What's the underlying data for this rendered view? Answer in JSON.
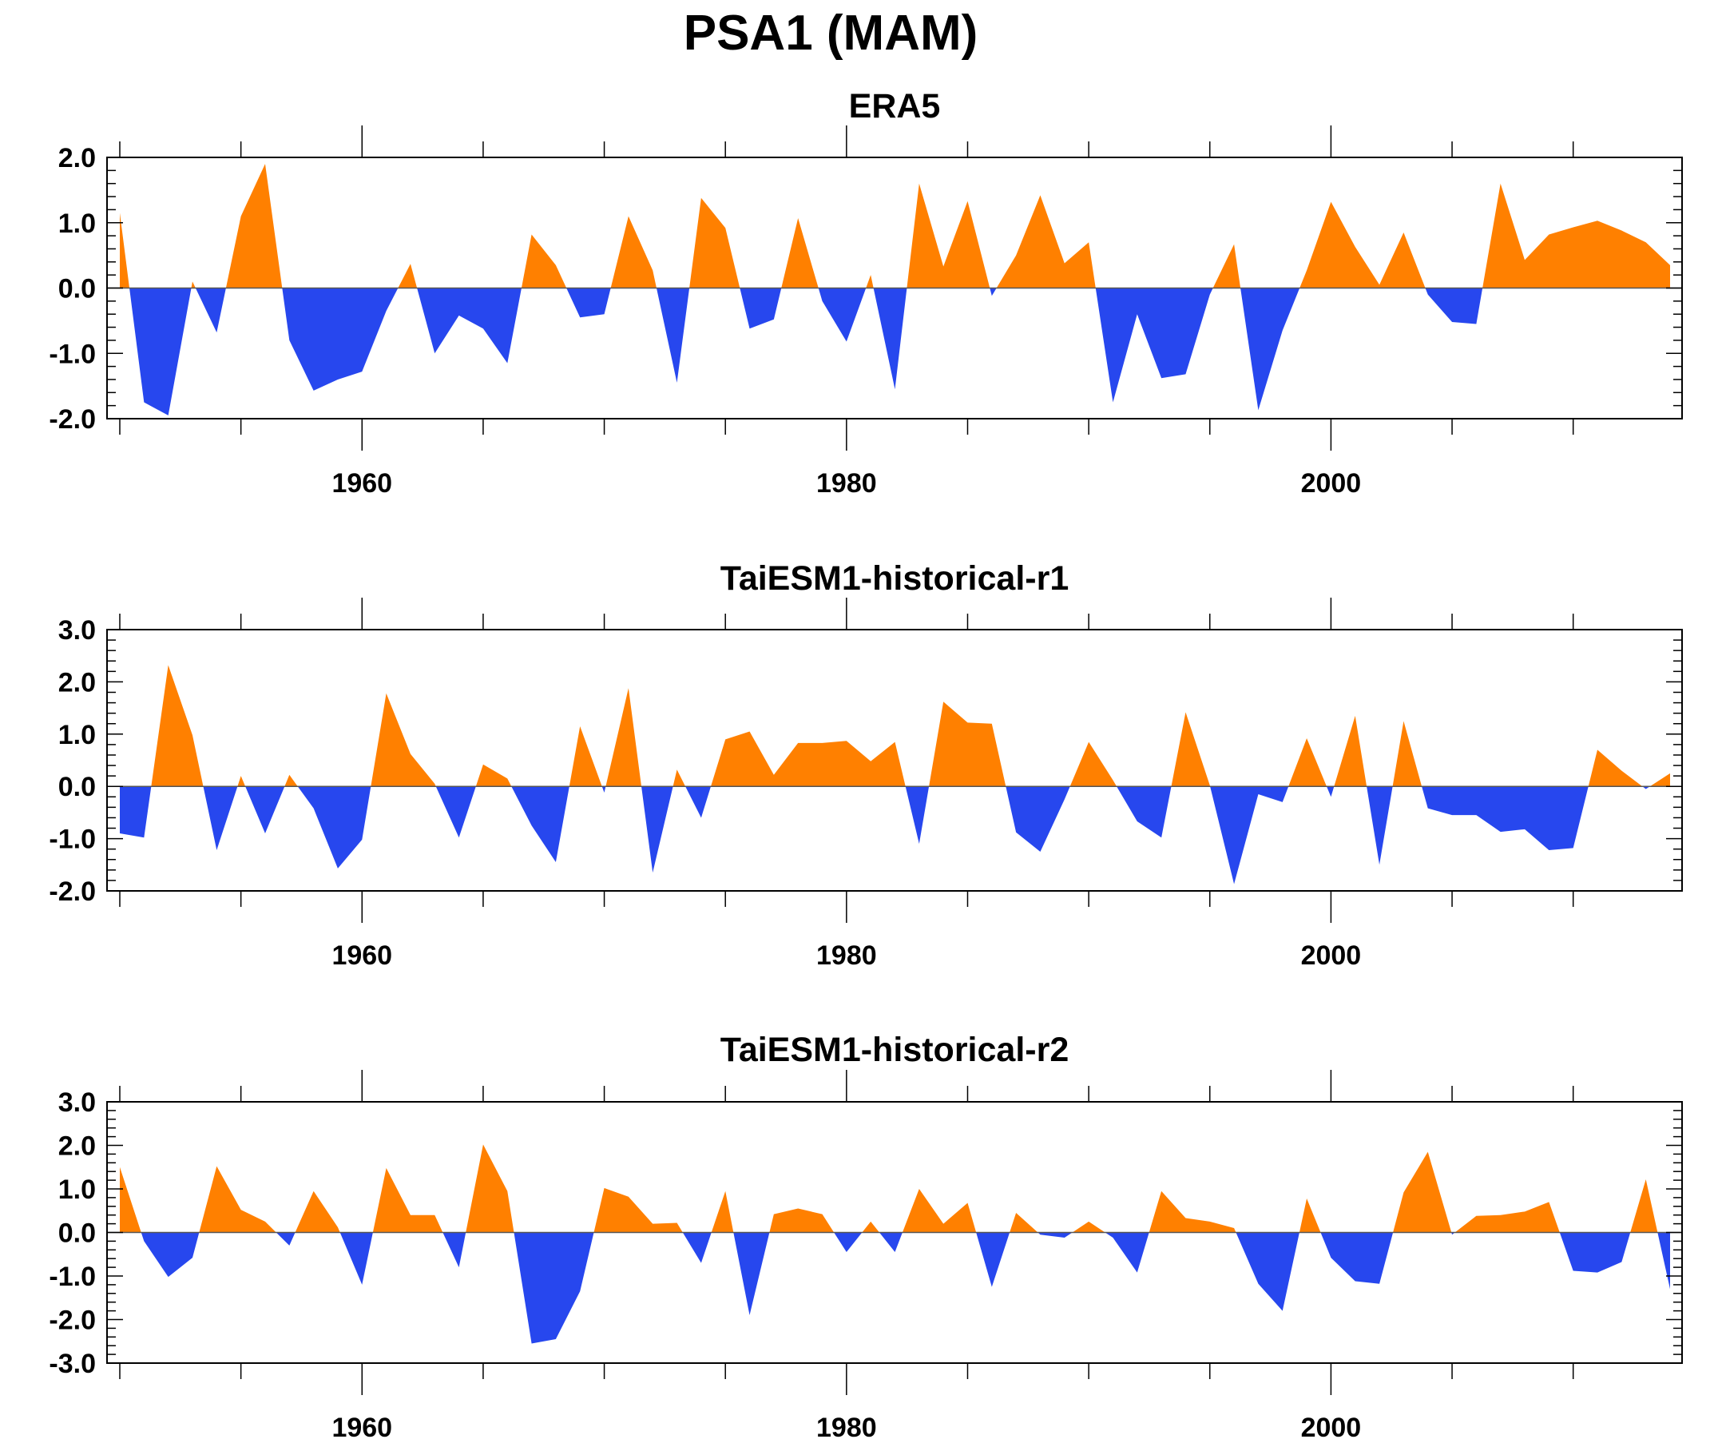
{
  "figure": {
    "title": "PSA1 (MAM)"
  },
  "colors": {
    "positive": "#ff8000",
    "negative": "#2747ee",
    "axis": "#000000"
  },
  "chart_data": [
    {
      "type": "area",
      "title": "ERA5",
      "xlabel": "",
      "ylabel": "",
      "xlim": [
        1950,
        2014
      ],
      "xticks": [
        1960,
        1980,
        2000
      ],
      "ylim": [
        -2.0,
        2.0
      ],
      "yticks": [
        "2.0",
        "1.0",
        "0.0",
        "-1.0",
        "-2.0"
      ],
      "ytick_values": [
        2.0,
        1.0,
        0.0,
        -1.0,
        -2.0
      ],
      "fill_above": "positive",
      "fill_below": "negative",
      "x": [
        1950,
        1951,
        1952,
        1953,
        1954,
        1955,
        1956,
        1957,
        1958,
        1959,
        1960,
        1961,
        1962,
        1963,
        1964,
        1965,
        1966,
        1967,
        1968,
        1969,
        1970,
        1971,
        1972,
        1973,
        1974,
        1975,
        1976,
        1977,
        1978,
        1979,
        1980,
        1981,
        1982,
        1983,
        1984,
        1985,
        1986,
        1987,
        1988,
        1989,
        1990,
        1991,
        1992,
        1993,
        1994,
        1995,
        1996,
        1997,
        1998,
        1999,
        2000,
        2001,
        2002,
        2003,
        2004,
        2005,
        2006,
        2007,
        2008,
        2009,
        2010,
        2011,
        2012,
        2013,
        2014
      ],
      "values": [
        1.15,
        -1.75,
        -1.95,
        0.1,
        -0.68,
        1.1,
        1.9,
        -0.8,
        -1.57,
        -1.4,
        -1.28,
        -0.35,
        0.37,
        -1.0,
        -0.42,
        -0.62,
        -1.15,
        0.82,
        0.35,
        -0.45,
        -0.4,
        1.1,
        0.27,
        -1.45,
        1.38,
        0.92,
        -0.62,
        -0.48,
        1.07,
        -0.2,
        -0.82,
        0.2,
        -1.55,
        1.6,
        0.33,
        1.33,
        -0.12,
        0.5,
        1.42,
        0.38,
        0.7,
        -1.75,
        -0.4,
        -1.38,
        -1.32,
        -0.1,
        0.67,
        -1.87,
        -0.65,
        0.27,
        1.32,
        0.63,
        0.05,
        0.85,
        -0.1,
        -0.52,
        -0.55,
        1.6,
        0.43,
        0.82,
        0.93,
        1.03,
        0.88,
        0.7,
        0.35
      ]
    },
    {
      "type": "area",
      "title": "TaiESM1-historical-r1",
      "xlabel": "",
      "ylabel": "",
      "xlim": [
        1950,
        2014
      ],
      "xticks": [
        1960,
        1980,
        2000
      ],
      "ylim": [
        -2.0,
        3.0
      ],
      "yticks": [
        "3.0",
        "2.0",
        "1.0",
        "0.0",
        "-1.0",
        "-2.0"
      ],
      "ytick_values": [
        3.0,
        2.0,
        1.0,
        0.0,
        -1.0,
        -2.0
      ],
      "fill_above": "positive",
      "fill_below": "negative",
      "x": [
        1950,
        1951,
        1952,
        1953,
        1954,
        1955,
        1956,
        1957,
        1958,
        1959,
        1960,
        1961,
        1962,
        1963,
        1964,
        1965,
        1966,
        1967,
        1968,
        1969,
        1970,
        1971,
        1972,
        1973,
        1974,
        1975,
        1976,
        1977,
        1978,
        1979,
        1980,
        1981,
        1982,
        1983,
        1984,
        1985,
        1986,
        1987,
        1988,
        1989,
        1990,
        1991,
        1992,
        1993,
        1994,
        1995,
        1996,
        1997,
        1998,
        1999,
        2000,
        2001,
        2002,
        2003,
        2004,
        2005,
        2006,
        2007,
        2008,
        2009,
        2010,
        2011,
        2012,
        2013,
        2014
      ],
      "values": [
        -0.9,
        -0.98,
        2.32,
        0.98,
        -1.22,
        0.2,
        -0.9,
        0.22,
        -0.42,
        -1.57,
        -1.02,
        1.78,
        0.62,
        0.05,
        -0.98,
        0.42,
        0.15,
        -0.75,
        -1.45,
        1.15,
        -0.12,
        1.88,
        -1.65,
        0.32,
        -0.6,
        0.9,
        1.05,
        0.22,
        0.83,
        0.83,
        0.87,
        0.48,
        0.85,
        -1.1,
        1.62,
        1.22,
        1.2,
        -0.88,
        -1.25,
        -0.25,
        0.85,
        0.12,
        -0.67,
        -0.98,
        1.42,
        0.02,
        -1.87,
        -0.15,
        -0.3,
        0.92,
        -0.2,
        1.35,
        -1.5,
        1.25,
        -0.42,
        -0.55,
        -0.55,
        -0.87,
        -0.82,
        -1.22,
        -1.18,
        0.7,
        0.3,
        -0.05,
        0.25
      ]
    },
    {
      "type": "area",
      "title": "TaiESM1-historical-r2",
      "xlabel": "",
      "ylabel": "",
      "xlim": [
        1950,
        2014
      ],
      "xticks": [
        1960,
        1980,
        2000
      ],
      "ylim": [
        -3.0,
        3.0
      ],
      "yticks": [
        "3.0",
        "2.0",
        "1.0",
        "0.0",
        "-1.0",
        "-2.0",
        "-3.0"
      ],
      "ytick_values": [
        3.0,
        2.0,
        1.0,
        0.0,
        -1.0,
        -2.0,
        -3.0
      ],
      "fill_above": "positive",
      "fill_below": "negative",
      "x": [
        1950,
        1951,
        1952,
        1953,
        1954,
        1955,
        1956,
        1957,
        1958,
        1959,
        1960,
        1961,
        1962,
        1963,
        1964,
        1965,
        1966,
        1967,
        1968,
        1969,
        1970,
        1971,
        1972,
        1973,
        1974,
        1975,
        1976,
        1977,
        1978,
        1979,
        1980,
        1981,
        1982,
        1983,
        1984,
        1985,
        1986,
        1987,
        1988,
        1989,
        1990,
        1991,
        1992,
        1993,
        1994,
        1995,
        1996,
        1997,
        1998,
        1999,
        2000,
        2001,
        2002,
        2003,
        2004,
        2005,
        2006,
        2007,
        2008,
        2009,
        2010,
        2011,
        2012,
        2013,
        2014
      ],
      "values": [
        1.5,
        -0.2,
        -1.02,
        -0.58,
        1.52,
        0.52,
        0.25,
        -0.3,
        0.95,
        0.12,
        -1.2,
        1.48,
        0.4,
        0.4,
        -0.8,
        2.02,
        0.95,
        -2.55,
        -2.45,
        -1.35,
        1.02,
        0.82,
        0.2,
        0.22,
        -0.7,
        0.95,
        -1.9,
        0.42,
        0.55,
        0.42,
        -0.45,
        0.25,
        -0.45,
        1.0,
        0.2,
        0.68,
        -1.25,
        0.45,
        -0.05,
        -0.12,
        0.25,
        -0.12,
        -0.92,
        0.95,
        0.33,
        0.25,
        0.1,
        -1.18,
        -1.8,
        0.78,
        -0.58,
        -1.12,
        -1.18,
        0.92,
        1.85,
        -0.05,
        0.38,
        0.4,
        0.48,
        0.7,
        -0.88,
        -0.92,
        -0.68,
        1.22,
        -1.3
      ]
    }
  ]
}
